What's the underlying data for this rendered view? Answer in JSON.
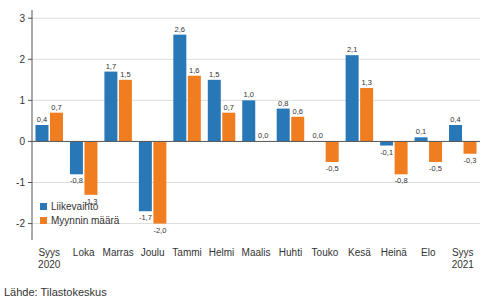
{
  "chart_data": {
    "type": "bar",
    "categories": [
      "Syys\n2020",
      "Loka",
      "Marras",
      "Joulu",
      "Tammi",
      "Helmi",
      "Maalis",
      "Huhti",
      "Touko",
      "Kesä",
      "Heinä",
      "Elo",
      "Syys\n2021"
    ],
    "series": [
      {
        "name": "Liikevaihto",
        "color": "#2878b8",
        "values": [
          0.4,
          -0.8,
          1.7,
          -1.7,
          2.6,
          1.5,
          1.0,
          0.8,
          0.0,
          2.1,
          -0.1,
          0.1,
          0.4
        ],
        "value_labels": [
          "0,4",
          "-0,8",
          "1,7",
          "-1,7",
          "2,6",
          "1,5",
          "1,0",
          "0,8",
          "0,0",
          "2,1",
          "-0,1",
          "0,1",
          "0,4"
        ]
      },
      {
        "name": "Myynnin määrä",
        "color": "#f07d1f",
        "values": [
          0.7,
          -1.3,
          1.5,
          -2.0,
          1.6,
          0.7,
          0.0,
          0.6,
          -0.5,
          1.3,
          -0.8,
          -0.5,
          -0.3
        ],
        "value_labels": [
          "0,7",
          "-1,3",
          "1,5",
          "-2,0",
          "1,6",
          "0,7",
          "0,0",
          "0,6",
          "-0,5",
          "1,3",
          "-0,8",
          "-0,5",
          "-0,3"
        ]
      }
    ],
    "ylim": [
      -2.4,
      3.2
    ],
    "yticks": [
      -2,
      -1,
      0,
      1,
      2,
      3
    ],
    "grid": true,
    "legend": "lower left",
    "data_labels": true,
    "source": "Lähde: Tilastokeskus"
  }
}
